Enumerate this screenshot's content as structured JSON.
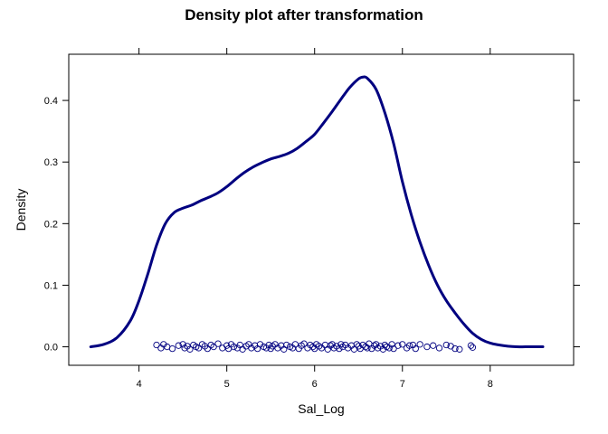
{
  "chart_data": {
    "type": "line",
    "title": "Density plot after transformation",
    "xlabel": "Sal_Log",
    "ylabel": "Density",
    "xlim": [
      3.2,
      8.95
    ],
    "ylim": [
      -0.03,
      0.475
    ],
    "x_ticks": [
      "4",
      "5",
      "6",
      "7",
      "8"
    ],
    "x_tick_values": [
      4,
      5,
      6,
      7,
      8
    ],
    "y_ticks": [
      "0.0",
      "0.1",
      "0.2",
      "0.3",
      "0.4"
    ],
    "y_tick_values": [
      0.0,
      0.1,
      0.2,
      0.3,
      0.4
    ],
    "grid": false,
    "line_color": "#000080",
    "point_color": "#000080",
    "series": [
      {
        "kind": "density",
        "x": [
          3.45,
          3.6,
          3.75,
          3.9,
          4.0,
          4.1,
          4.2,
          4.3,
          4.4,
          4.5,
          4.6,
          4.7,
          4.8,
          4.9,
          5.0,
          5.1,
          5.2,
          5.3,
          5.4,
          5.5,
          5.6,
          5.7,
          5.8,
          5.9,
          6.0,
          6.1,
          6.2,
          6.3,
          6.4,
          6.5,
          6.55,
          6.6,
          6.7,
          6.8,
          6.9,
          7.0,
          7.1,
          7.2,
          7.3,
          7.4,
          7.5,
          7.6,
          7.7,
          7.8,
          7.9,
          8.0,
          8.1,
          8.2,
          8.3,
          8.4,
          8.5,
          8.6
        ],
        "y": [
          0.0,
          0.004,
          0.015,
          0.042,
          0.075,
          0.118,
          0.165,
          0.2,
          0.218,
          0.225,
          0.23,
          0.237,
          0.243,
          0.25,
          0.26,
          0.272,
          0.283,
          0.292,
          0.299,
          0.305,
          0.309,
          0.314,
          0.322,
          0.333,
          0.345,
          0.363,
          0.382,
          0.402,
          0.421,
          0.435,
          0.438,
          0.436,
          0.418,
          0.38,
          0.33,
          0.268,
          0.215,
          0.17,
          0.132,
          0.1,
          0.075,
          0.055,
          0.037,
          0.022,
          0.012,
          0.006,
          0.003,
          0.001,
          0.0,
          0.0,
          0.0,
          0.0
        ]
      },
      {
        "kind": "rug-points",
        "x": [
          4.2,
          4.25,
          4.28,
          4.32,
          4.38,
          4.45,
          4.5,
          4.52,
          4.55,
          4.58,
          4.62,
          4.65,
          4.68,
          4.72,
          4.75,
          4.78,
          4.82,
          4.85,
          4.9,
          4.95,
          5.0,
          5.02,
          5.05,
          5.08,
          5.12,
          5.15,
          5.18,
          5.22,
          5.25,
          5.28,
          5.32,
          5.35,
          5.38,
          5.42,
          5.45,
          5.48,
          5.5,
          5.52,
          5.55,
          5.58,
          5.62,
          5.65,
          5.68,
          5.72,
          5.75,
          5.78,
          5.82,
          5.85,
          5.88,
          5.92,
          5.95,
          5.98,
          6.0,
          6.02,
          6.05,
          6.08,
          6.12,
          6.15,
          6.18,
          6.2,
          6.22,
          6.25,
          6.28,
          6.3,
          6.32,
          6.35,
          6.38,
          6.42,
          6.45,
          6.48,
          6.5,
          6.52,
          6.55,
          6.58,
          6.6,
          6.62,
          6.65,
          6.68,
          6.7,
          6.72,
          6.75,
          6.78,
          6.8,
          6.82,
          6.85,
          6.88,
          6.9,
          6.95,
          7.0,
          7.05,
          7.08,
          7.12,
          7.15,
          7.2,
          7.28,
          7.35,
          7.42,
          7.5,
          7.55,
          7.6,
          7.65,
          7.78,
          7.8
        ],
        "y": [
          0.003,
          -0.002,
          0.004,
          0.0,
          -0.003,
          0.002,
          0.004,
          -0.002,
          0.001,
          -0.004,
          0.003,
          0.0,
          -0.002,
          0.004,
          0.001,
          -0.003,
          0.003,
          0.0,
          0.005,
          -0.002,
          0.002,
          -0.003,
          0.004,
          0.0,
          -0.002,
          0.003,
          -0.004,
          0.001,
          0.004,
          -0.002,
          0.002,
          -0.003,
          0.004,
          0.0,
          -0.002,
          0.003,
          -0.003,
          0.001,
          0.004,
          -0.002,
          0.002,
          -0.004,
          0.003,
          0.0,
          -0.002,
          0.004,
          -0.003,
          0.002,
          0.005,
          -0.002,
          0.003,
          0.0,
          -0.003,
          0.004,
          0.001,
          -0.002,
          0.003,
          -0.004,
          0.002,
          0.004,
          -0.002,
          0.001,
          -0.003,
          0.004,
          0.0,
          0.003,
          -0.002,
          0.002,
          -0.004,
          0.004,
          0.001,
          -0.003,
          0.003,
          0.0,
          -0.002,
          0.005,
          -0.003,
          0.002,
          0.004,
          -0.002,
          0.001,
          -0.004,
          0.003,
          0.0,
          -0.002,
          0.004,
          -0.003,
          0.002,
          0.004,
          -0.002,
          0.002,
          0.003,
          -0.003,
          0.004,
          0.0,
          0.002,
          -0.002,
          0.003,
          0.001,
          -0.003,
          -0.004,
          0.002,
          -0.001
        ]
      }
    ]
  }
}
